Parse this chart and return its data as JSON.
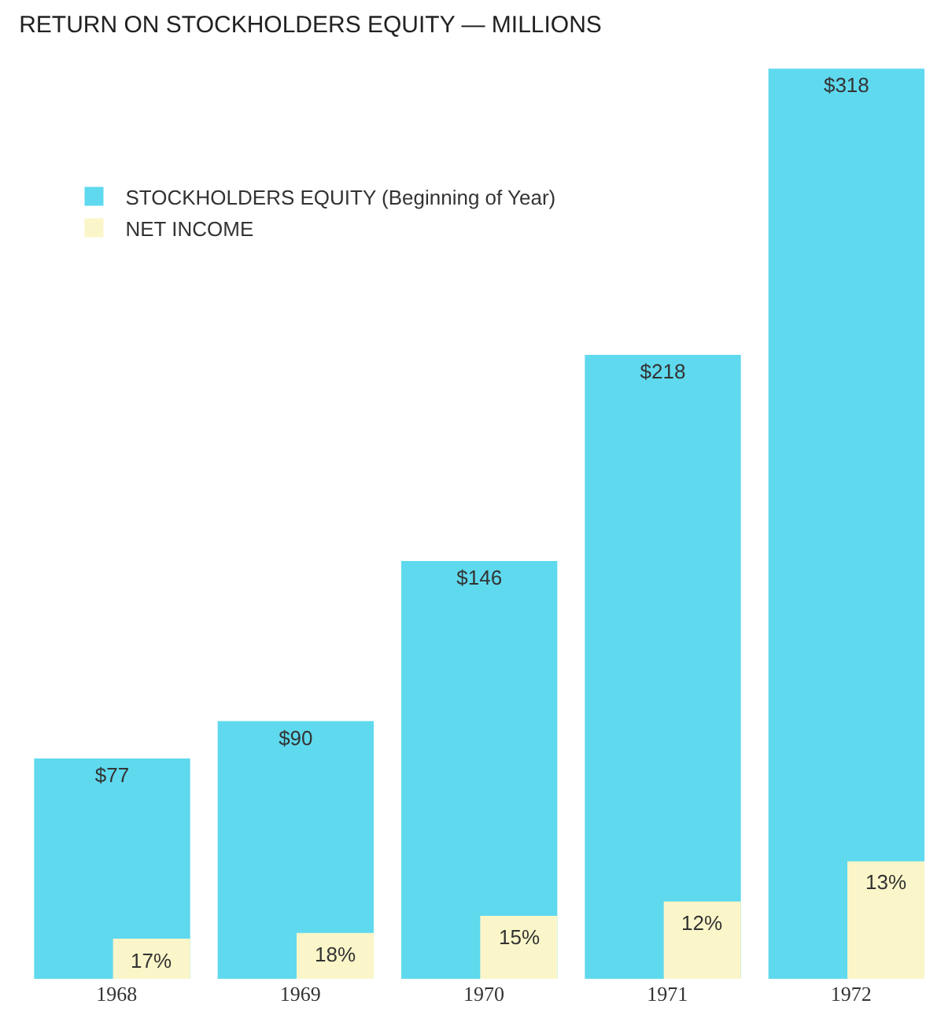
{
  "chart_data": {
    "type": "bar",
    "title": "RETURN ON STOCKHOLDERS EQUITY — MILLIONS",
    "categories": [
      "1968",
      "1969",
      "1970",
      "1971",
      "1972"
    ],
    "series": [
      {
        "name": "STOCKHOLDERS EQUITY (Beginning of Year)",
        "color": "#5fd9ee",
        "values": [
          77,
          90,
          146,
          218,
          318
        ],
        "value_labels": [
          "$77",
          "$90",
          "$146",
          "$218",
          "$318"
        ]
      },
      {
        "name": "NET INCOME",
        "color": "#fbf6c9",
        "values": [
          14,
          16,
          22,
          27,
          41
        ]
      }
    ],
    "annotations": [
      {
        "text": "17%",
        "x": "1968",
        "y": 14
      },
      {
        "text": "18%",
        "x": "1969",
        "y": 16
      },
      {
        "text": "15%",
        "x": "1970",
        "y": 22
      },
      {
        "text": "12%",
        "x": "1971",
        "y": 27
      },
      {
        "text": "13%",
        "x": "1972",
        "y": 41
      }
    ],
    "ylim": [
      0,
      320
    ],
    "tick_labels": "x",
    "grid": false,
    "legend": "top left"
  }
}
